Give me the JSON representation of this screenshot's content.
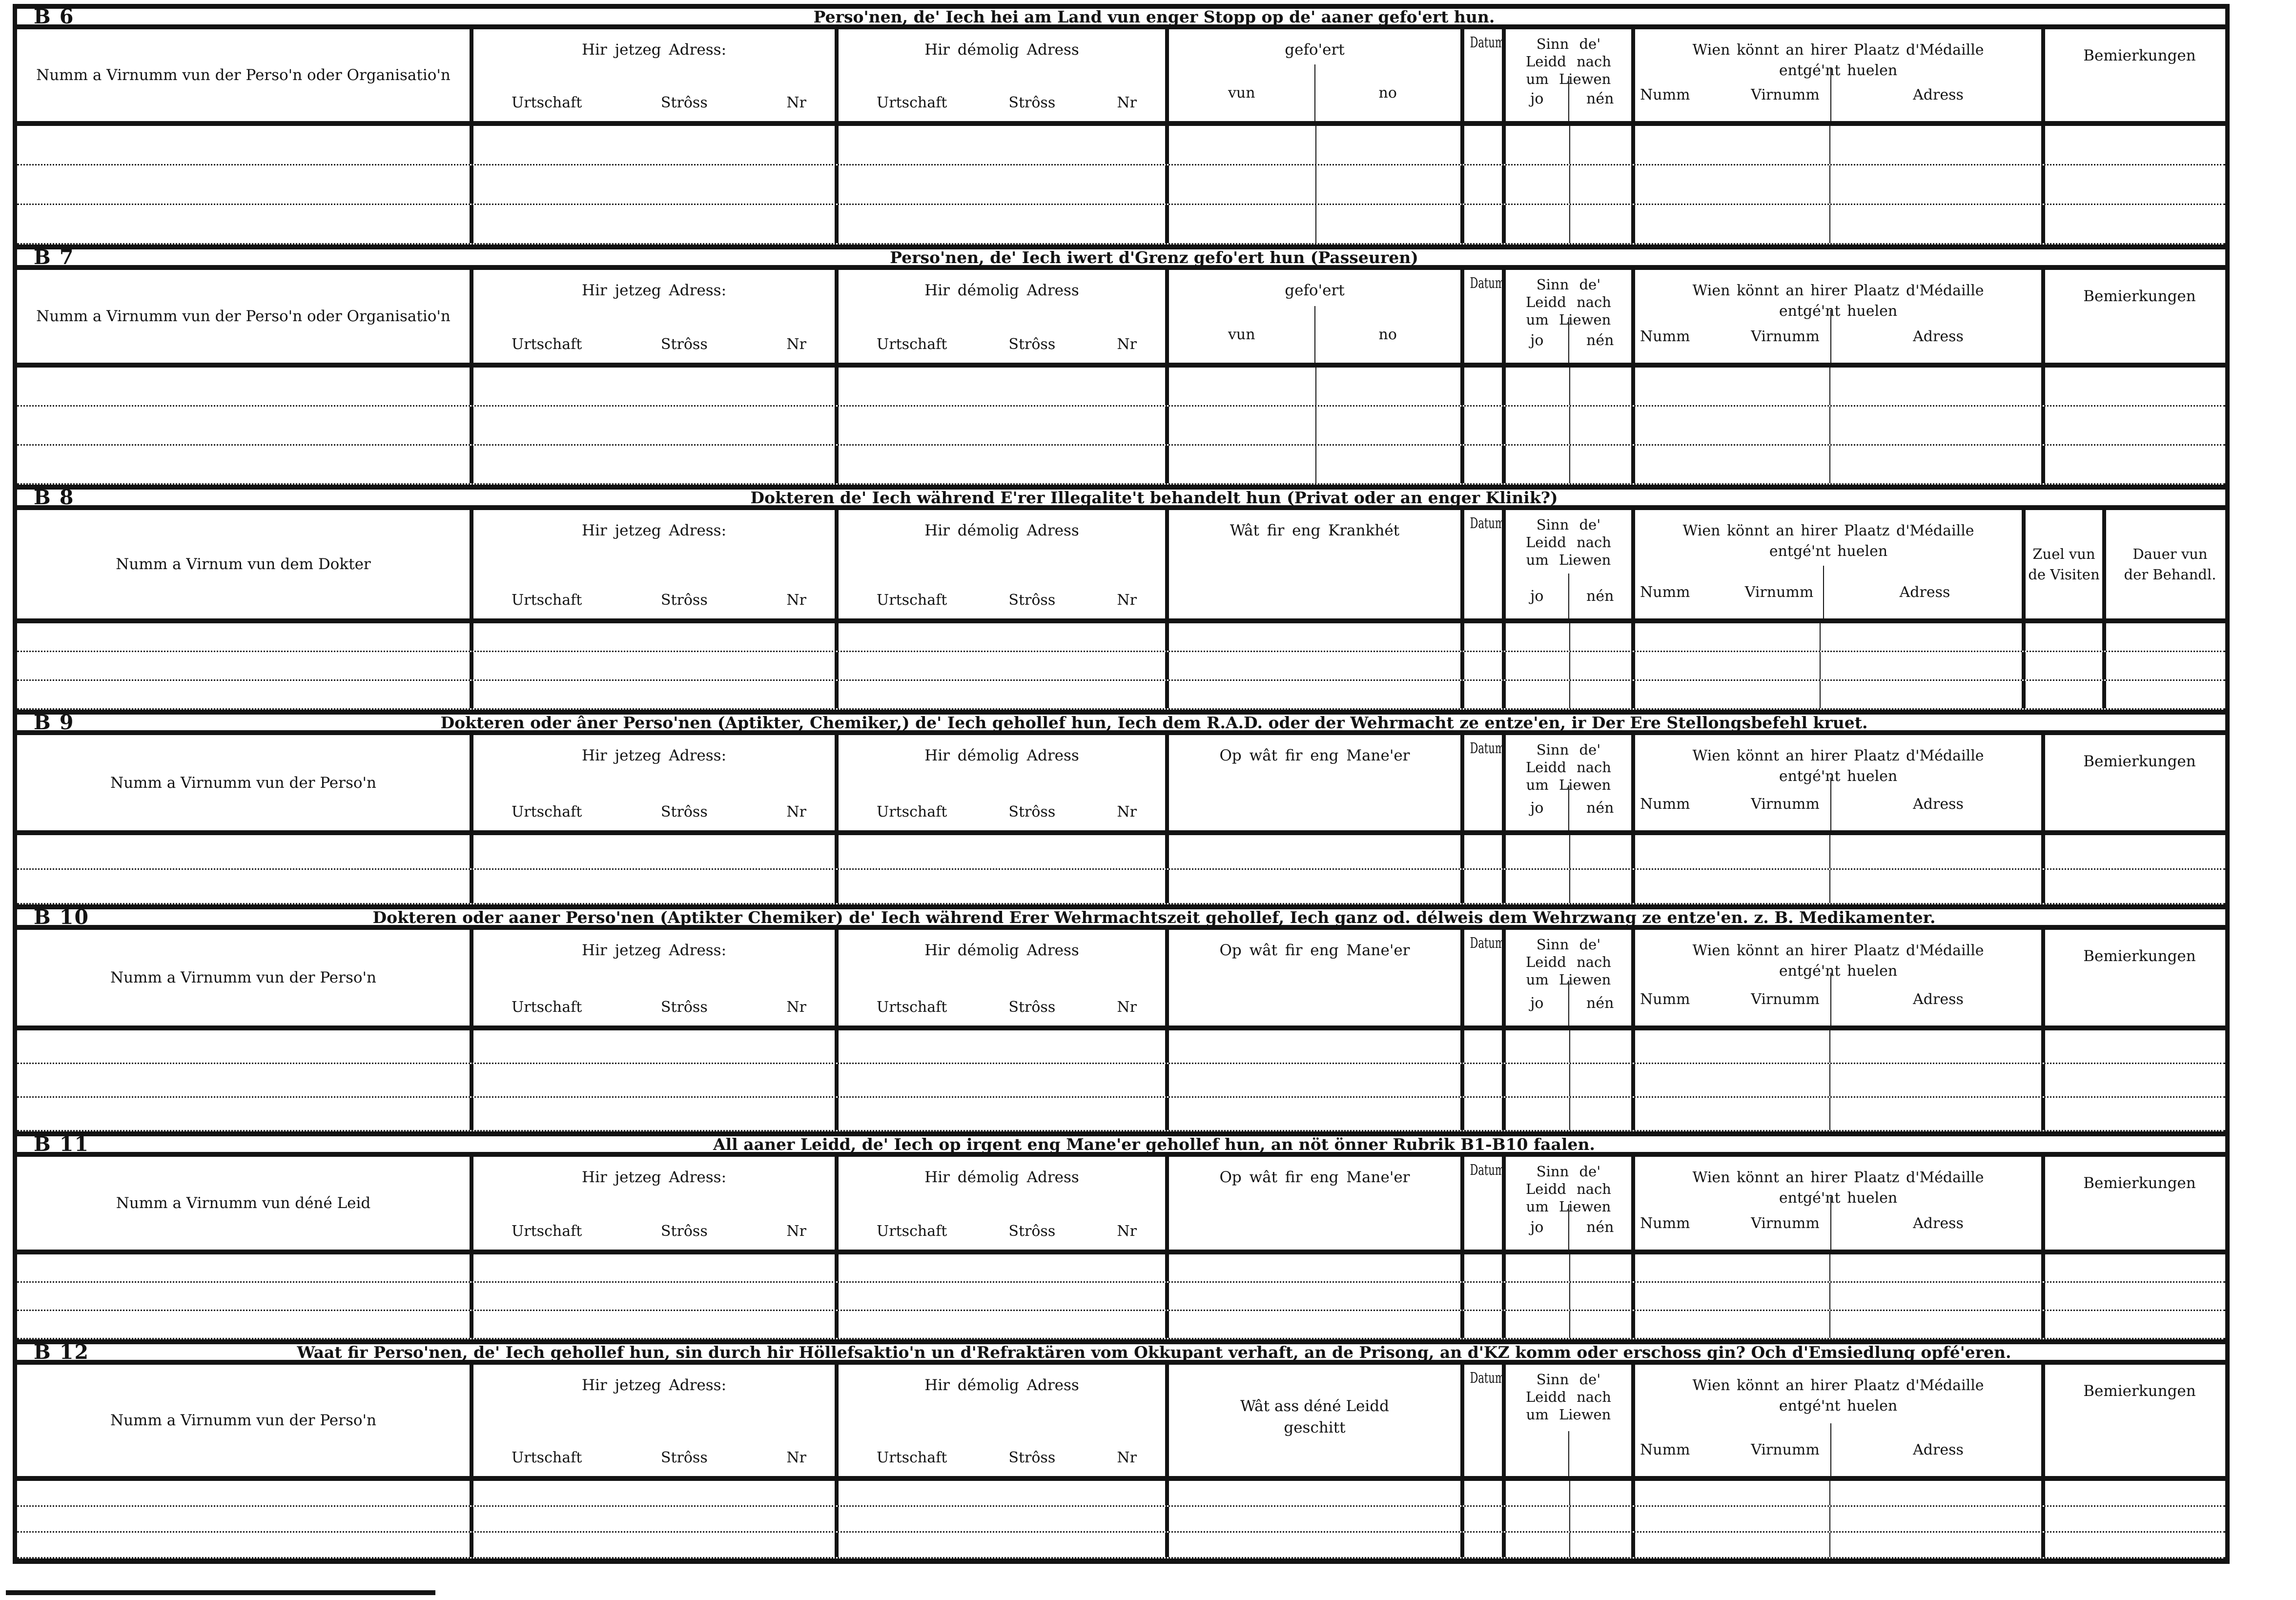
{
  "colors": {
    "ink": "#131313",
    "paper": "#ffffff"
  },
  "sections": [
    {
      "id": "B 6",
      "title": "Perso'nen, de' Iech hei am Land vun enger Stopp op de' aaner gefo'ert hun.",
      "entry_rows": 3,
      "name_col": "Numm a Virnumm vun der Perso'n oder Organisatio'n",
      "addr_now": "Hir jetzeg Adress:",
      "addr_former": "Hir démolig Adress",
      "urtschaft": "Urtschaft",
      "stross": "Strôss",
      "nr": "Nr",
      "deed": "gefo'ert",
      "deed_sub1": "vun",
      "deed_sub2": "no",
      "datum": "Datum",
      "alive_l1": "Sinn de'",
      "alive_l2": "Leidd nach",
      "alive_l3": "um Liewen",
      "alive_yes": "jo",
      "alive_no": "nén",
      "medal_l1": "Wien könnt an hirer Plaatz d'Médaille",
      "medal_l2": "entgé'nt huelen",
      "medal_numm": "Numm",
      "medal_virnumm": "Virnumm",
      "medal_adress": "Adress",
      "remarks": "Bemierkungen"
    },
    {
      "id": "B 7",
      "title": "Perso'nen, de' Iech iwert d'Grenz gefo'ert hun (Passeuren)",
      "entry_rows": 3,
      "name_col": "Numm a Virnumm vun der Perso'n oder Organisatio'n",
      "addr_now": "Hir jetzeg Adress:",
      "addr_former": "Hir démolig Adress",
      "urtschaft": "Urtschaft",
      "stross": "Strôss",
      "nr": "Nr",
      "deed": "gefo'ert",
      "deed_sub1": "vun",
      "deed_sub2": "no",
      "datum": "Datum",
      "alive_l1": "Sinn de'",
      "alive_l2": "Leidd nach",
      "alive_l3": "um Liewen",
      "alive_yes": "jo",
      "alive_no": "nén",
      "medal_l1": "Wien könnt an hirer Plaatz d'Médaille",
      "medal_l2": "entgé'nt huelen",
      "medal_numm": "Numm",
      "medal_virnumm": "Virnumm",
      "medal_adress": "Adress",
      "remarks": "Bemierkungen"
    },
    {
      "id": "B 8",
      "title": "Dokteren de' Iech während E'rer Illegalite't behandelt hun (Privat oder an enger Klinik?)",
      "entry_rows": 3,
      "name_col": "Numm a Virnum vun dem Dokter",
      "addr_now": "Hir jetzeg Adress:",
      "addr_former": "Hir démolig Adress",
      "urtschaft": "Urtschaft",
      "stross": "Strôss",
      "nr": "Nr",
      "deed": "Wât fir eng Krankhét",
      "datum": "Datum",
      "alive_l1": "Sinn de'",
      "alive_l2": "Leidd nach",
      "alive_l3": "um Liewen",
      "alive_yes": "jo",
      "alive_no": "nén",
      "medal_l1": "Wien könnt an hirer Plaatz d'Médaille",
      "medal_l2": "entgé'nt huelen",
      "medal_numm": "Numm",
      "medal_virnumm": "Virnumm",
      "medal_adress": "Adress",
      "visits_l1": "Zuel vun",
      "visits_l2": "de Visiten",
      "duration_l1": "Dauer vun",
      "duration_l2": "der Behandl."
    },
    {
      "id": "B 9",
      "title": "Dokteren oder âner Perso'nen (Aptikter, Chemiker,) de' Iech gehollef hun, Iech dem R.A.D. oder der Wehrmacht ze entze'en, ir Der Ere Stellongsbefehl kruet.",
      "entry_rows": 2,
      "name_col": "Numm a Virnumm vun der Perso'n",
      "addr_now": "Hir jetzeg Adress:",
      "addr_former": "Hir démolig Adress",
      "urtschaft": "Urtschaft",
      "stross": "Strôss",
      "nr": "Nr",
      "deed": "Op wât fir eng Mane'er",
      "datum": "Datum",
      "alive_l1": "Sinn de'",
      "alive_l2": "Leidd nach",
      "alive_l3": "um Liewen",
      "alive_yes": "jo",
      "alive_no": "nén",
      "medal_l1": "Wien könnt an hirer Plaatz d'Médaille",
      "medal_l2": "entgé'nt huelen",
      "medal_numm": "Numm",
      "medal_virnumm": "Virnumm",
      "medal_adress": "Adress",
      "remarks": "Bemierkungen"
    },
    {
      "id": "B 10",
      "title": "Dokteren oder aaner Perso'nen (Aptikter Chemiker) de' Iech während Erer Wehrmachtszeit gehollef, Iech ganz od. délweis dem Wehrzwang ze entze'en. z. B. Medikamenter.",
      "entry_rows": 3,
      "name_col": "Numm a Virnumm vun der Perso'n",
      "addr_now": "Hir jetzeg Adress:",
      "addr_former": "Hir démolig Adress",
      "urtschaft": "Urtschaft",
      "stross": "Strôss",
      "nr": "Nr",
      "deed": "Op wât fir eng Mane'er",
      "datum": "Datum",
      "alive_l1": "Sinn de'",
      "alive_l2": "Leidd nach",
      "alive_l3": "um Liewen",
      "alive_yes": "jo",
      "alive_no": "nén",
      "medal_l1": "Wien könnt an hirer Plaatz d'Médaille",
      "medal_l2": "entgé'nt huelen",
      "medal_numm": "Numm",
      "medal_virnumm": "Virnumm",
      "medal_adress": "Adress",
      "remarks": "Bemierkungen"
    },
    {
      "id": "B 11",
      "title": "All aaner Leidd, de' Iech op irgent eng Mane'er gehollef hun, an nöt önner Rubrik B1-B10 faalen.",
      "entry_rows": 3,
      "name_col": "Numm a Virnumm vun déné Leid",
      "addr_now": "Hir jetzeg Adress:",
      "addr_former": "Hir démolig Adress",
      "urtschaft": "Urtschaft",
      "stross": "Strôss",
      "nr": "Nr",
      "deed": "Op wât fir eng Mane'er",
      "datum": "Datum",
      "alive_l1": "Sinn de'",
      "alive_l2": "Leidd nach",
      "alive_l3": "um Liewen",
      "alive_yes": "jo",
      "alive_no": "nén",
      "medal_l1": "Wien könnt an hirer Plaatz d'Médaille",
      "medal_l2": "entgé'nt huelen",
      "medal_numm": "Numm",
      "medal_virnumm": "Virnumm",
      "medal_adress": "Adress",
      "remarks": "Bemierkungen"
    },
    {
      "id": "B 12",
      "title": "Waat fir Perso'nen, de' Iech gehollef hun, sin durch hir Höllefsaktio'n un d'Refraktären vom Okkupant verhaft, an de Prisong, an d'KZ komm oder erschoss gin? Och d'Emsiedlung opfé'eren.",
      "entry_rows": 3,
      "name_col": "Numm a Virnumm vun der Perso'n",
      "addr_now": "Hir jetzeg Adress:",
      "addr_former": "Hir démolig Adress",
      "urtschaft": "Urtschaft",
      "stross": "Strôss",
      "nr": "Nr",
      "deed_l1": "Wât ass déné Leidd",
      "deed_l2": "geschitt",
      "datum": "Datum",
      "alive_l1": "Sinn de'",
      "alive_l2": "Leidd nach",
      "alive_l3": "um Liewen",
      "medal_l1": "Wien könnt an hirer Plaatz d'Médaille",
      "medal_l2": "entgé'nt huelen",
      "medal_numm": "Numm",
      "medal_virnumm": "Virnumm",
      "medal_adress": "Adress",
      "remarks": "Bemierkungen"
    }
  ]
}
